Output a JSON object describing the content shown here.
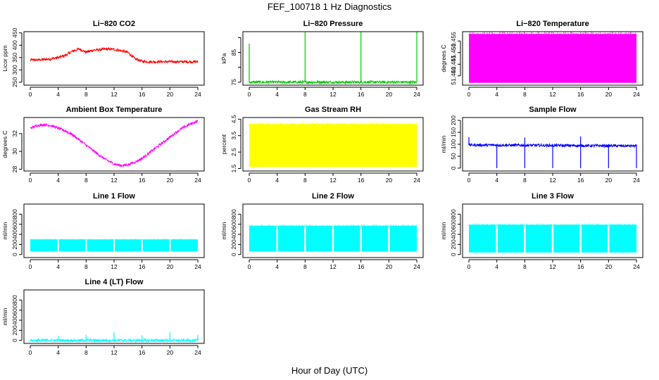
{
  "title": "FEF_100718  1 Hz Diagnostics",
  "xlabel": "Hour of Day (UTC)",
  "chart_data": [
    {
      "type": "line",
      "title": "Li−820 CO2",
      "ylabel": "Licor ppm",
      "color": "#ff0000",
      "x_ticks": [
        "0",
        "4",
        "8",
        "12",
        "16",
        "20",
        "24"
      ],
      "xlim": [
        0,
        24
      ],
      "y_ticks": [
        "250",
        "300",
        "350",
        "400",
        "450"
      ],
      "y_tick_values": [
        250,
        300,
        350,
        400,
        450
      ],
      "ylim": [
        238,
        455
      ],
      "series": [
        {
          "x": [
            0,
            1,
            2,
            3,
            4,
            5,
            6,
            7,
            8,
            9,
            10,
            11,
            12,
            13,
            14,
            15,
            16,
            17,
            18,
            19,
            20,
            21,
            22,
            23,
            24
          ],
          "y": [
            340,
            340,
            342,
            345,
            350,
            358,
            375,
            385,
            372,
            380,
            382,
            385,
            383,
            378,
            370,
            345,
            335,
            333,
            333,
            333,
            333,
            333,
            333,
            333,
            333
          ]
        }
      ]
    },
    {
      "type": "line",
      "title": "Li−820 Pressure",
      "ylabel": "kPa",
      "color": "#00c800",
      "x_ticks": [
        "0",
        "4",
        "8",
        "12",
        "16",
        "20",
        "24"
      ],
      "xlim": [
        0,
        24
      ],
      "y_ticks": [
        "75",
        "",
        "85",
        ""
      ],
      "y_tick_values": [
        75,
        80,
        85,
        90
      ],
      "ylim": [
        74,
        92
      ],
      "series": [
        {
          "x": [
            0,
            4,
            8,
            12,
            16,
            20,
            24
          ],
          "y": [
            75,
            75,
            75,
            75,
            75,
            75,
            75
          ]
        }
      ],
      "spikes": [
        {
          "x": 0,
          "y": 88
        },
        {
          "x": 8,
          "y": 92
        },
        {
          "x": 16,
          "y": 92
        },
        {
          "x": 24,
          "y": 92
        }
      ]
    },
    {
      "type": "area",
      "title": "Li−820 Temperature",
      "ylabel": "degrees C",
      "color": "#ff00ff",
      "x_ticks": [
        "0",
        "4",
        "8",
        "12",
        "16",
        "20",
        "24"
      ],
      "xlim": [
        0,
        24
      ],
      "y_ticks": [
        "51.440",
        "51.445",
        "51.450",
        "51.455"
      ],
      "y_tick_values": [
        51.44,
        51.445,
        51.45,
        51.455
      ],
      "ylim": [
        51.436,
        51.459
      ],
      "band": {
        "low": 51.437,
        "high": 51.458
      }
    },
    {
      "type": "line",
      "title": "Ambient Box Temperature",
      "ylabel": "degrees C",
      "color": "#ff00ff",
      "x_ticks": [
        "0",
        "4",
        "8",
        "12",
        "16",
        "20",
        "24"
      ],
      "xlim": [
        0,
        24
      ],
      "y_ticks": [
        "28",
        "30",
        "32"
      ],
      "y_tick_values": [
        28,
        30,
        32
      ],
      "ylim": [
        27.8,
        33.8
      ],
      "series": [
        {
          "x": [
            0,
            1,
            2,
            3,
            4,
            5,
            6,
            7,
            8,
            9,
            10,
            11,
            12,
            13,
            14,
            15,
            16,
            17,
            18,
            19,
            20,
            21,
            22,
            23,
            24
          ],
          "y": [
            32.6,
            32.9,
            33.0,
            32.9,
            32.6,
            32.3,
            31.9,
            31.3,
            30.7,
            30.1,
            29.5,
            29.0,
            28.6,
            28.4,
            28.5,
            28.8,
            29.2,
            29.8,
            30.4,
            31.0,
            31.6,
            32.2,
            32.7,
            33.1,
            33.4
          ]
        }
      ]
    },
    {
      "type": "area",
      "title": "Gas Stream RH",
      "ylabel": "percent",
      "color": "#ffff00",
      "x_ticks": [
        "0",
        "4",
        "8",
        "12",
        "16",
        "20",
        "24"
      ],
      "xlim": [
        0,
        24
      ],
      "y_ticks": [
        "1.5",
        "2.5",
        "3.5",
        "4.5"
      ],
      "y_tick_values": [
        1.5,
        2.5,
        3.5,
        4.5
      ],
      "ylim": [
        1.35,
        4.6
      ],
      "band": {
        "low": 1.6,
        "high": 4.2
      }
    },
    {
      "type": "line",
      "title": "Sample Flow",
      "ylabel": "ml/min",
      "color": "#0000ff",
      "x_ticks": [
        "0",
        "4",
        "8",
        "12",
        "16",
        "20",
        "24"
      ],
      "xlim": [
        0,
        24
      ],
      "y_ticks": [
        "0",
        "50",
        "100",
        "150",
        "200"
      ],
      "y_tick_values": [
        0,
        50,
        100,
        150,
        200
      ],
      "ylim": [
        -12,
        212
      ],
      "series": [
        {
          "x": [
            0,
            24
          ],
          "y": [
            97,
            93
          ]
        }
      ],
      "dips": [
        {
          "x": 4,
          "y": 0
        },
        {
          "x": 8,
          "y": 0
        },
        {
          "x": 12,
          "y": 0
        },
        {
          "x": 16,
          "y": 0
        },
        {
          "x": 20,
          "y": 0
        },
        {
          "x": 24,
          "y": 0
        }
      ],
      "spikes": [
        {
          "x": 0,
          "y": 130
        },
        {
          "x": 8,
          "y": 128
        },
        {
          "x": 16,
          "y": 133
        }
      ]
    },
    {
      "type": "area",
      "title": "Line 1 Flow",
      "ylabel": "ml/min",
      "color": "#00ffff",
      "x_ticks": [
        "0",
        "4",
        "8",
        "12",
        "16",
        "20",
        "24"
      ],
      "xlim": [
        0,
        24
      ],
      "y_ticks": [
        "0",
        "200",
        "400",
        "600",
        "800"
      ],
      "y_tick_values": [
        0,
        200,
        400,
        600,
        800
      ],
      "ylim": [
        -60,
        1000
      ],
      "band": {
        "low": 60,
        "high": 300
      },
      "gaps": [
        4,
        8,
        12,
        16,
        20
      ]
    },
    {
      "type": "area",
      "title": "Line 2 Flow",
      "ylabel": "ml/min",
      "color": "#00ffff",
      "x_ticks": [
        "0",
        "4",
        "8",
        "12",
        "16",
        "20",
        "24"
      ],
      "xlim": [
        0,
        24
      ],
      "y_ticks": [
        "0",
        "200",
        "400",
        "600",
        "800"
      ],
      "y_tick_values": [
        0,
        200,
        400,
        600,
        800
      ],
      "ylim": [
        -60,
        1000
      ],
      "band": {
        "low": 60,
        "high": 570
      },
      "gaps": [
        4,
        8,
        12,
        16,
        20
      ]
    },
    {
      "type": "area",
      "title": "Line 3 Flow",
      "ylabel": "ml/min",
      "color": "#00ffff",
      "x_ticks": [
        "0",
        "4",
        "8",
        "12",
        "16",
        "20",
        "24"
      ],
      "xlim": [
        0,
        24
      ],
      "y_ticks": [
        "0",
        "200",
        "400",
        "600",
        "800"
      ],
      "y_tick_values": [
        0,
        200,
        400,
        600,
        800
      ],
      "ylim": [
        -60,
        1000
      ],
      "band": {
        "low": 40,
        "high": 590
      },
      "gaps": [
        4,
        8,
        12,
        16,
        20
      ]
    },
    {
      "type": "line",
      "title": "Line 4 (LT) Flow",
      "ylabel": "ml/min",
      "color": "#00ffff",
      "x_ticks": [
        "0",
        "4",
        "8",
        "12",
        "16",
        "20",
        "24"
      ],
      "xlim": [
        0,
        24
      ],
      "y_ticks": [
        "0",
        "200",
        "400",
        "600",
        "800"
      ],
      "y_tick_values": [
        0,
        200,
        400,
        600,
        800
      ],
      "ylim": [
        -60,
        1000
      ],
      "series": [
        {
          "x": [
            0,
            24
          ],
          "y": [
            0,
            0
          ]
        }
      ],
      "spikes": [
        {
          "x": 4,
          "y": 90
        },
        {
          "x": 8,
          "y": 110
        },
        {
          "x": 12,
          "y": 160
        },
        {
          "x": 16,
          "y": 100
        },
        {
          "x": 20,
          "y": 160
        },
        {
          "x": 24,
          "y": 110
        }
      ]
    }
  ]
}
